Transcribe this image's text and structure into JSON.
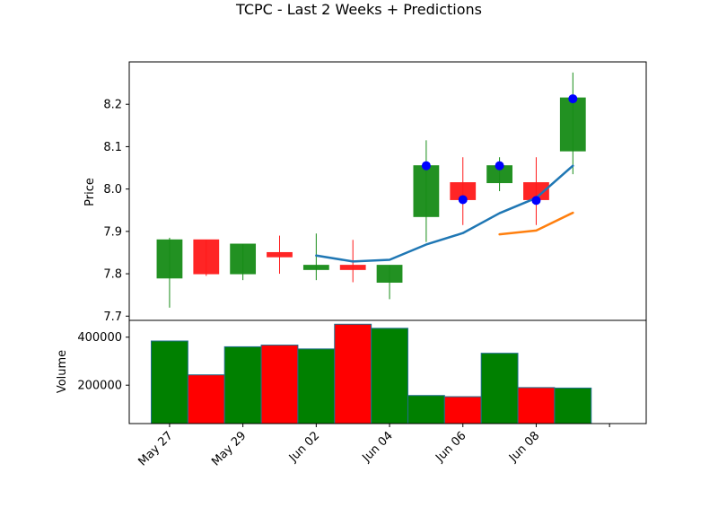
{
  "chart_data": {
    "title": "TCPC - Last 2 Weeks + Predictions",
    "type": "candlestick",
    "price_panel": {
      "ylabel": "Price",
      "ylim": [
        7.69,
        8.3
      ],
      "yticks": [
        7.7,
        7.8,
        7.9,
        8.0,
        8.1,
        8.2
      ],
      "ytick_labels": [
        "7.7",
        "7.8",
        "7.9",
        "8.0",
        "8.1",
        "8.2"
      ],
      "candles": [
        {
          "x": 0,
          "open": 7.79,
          "close": 7.88,
          "high": 7.885,
          "low": 7.72,
          "color": "#178c17"
        },
        {
          "x": 1,
          "open": 7.88,
          "close": 7.8,
          "high": 7.88,
          "low": 7.795,
          "color": "#ff1a1a"
        },
        {
          "x": 2,
          "open": 7.8,
          "close": 7.87,
          "high": 7.87,
          "low": 7.785,
          "color": "#178c17"
        },
        {
          "x": 3,
          "open": 7.85,
          "close": 7.84,
          "high": 7.89,
          "low": 7.8,
          "color": "#ff1a1a"
        },
        {
          "x": 4,
          "open": 7.81,
          "close": 7.82,
          "high": 7.895,
          "low": 7.785,
          "color": "#178c17"
        },
        {
          "x": 5,
          "open": 7.82,
          "close": 7.81,
          "high": 7.88,
          "low": 7.78,
          "color": "#ff1a1a"
        },
        {
          "x": 6,
          "open": 7.78,
          "close": 7.82,
          "high": 7.82,
          "low": 7.74,
          "color": "#178c17"
        },
        {
          "x": 7,
          "open": 7.935,
          "close": 8.055,
          "high": 8.115,
          "low": 7.875,
          "color": "#178c17"
        },
        {
          "x": 8,
          "open": 8.015,
          "close": 7.975,
          "high": 8.075,
          "low": 7.915,
          "color": "#ff1a1a"
        },
        {
          "x": 9,
          "open": 8.015,
          "close": 8.055,
          "high": 8.075,
          "low": 7.995,
          "color": "#178c17"
        },
        {
          "x": 10,
          "open": 8.015,
          "close": 7.975,
          "high": 8.075,
          "low": 7.915,
          "color": "#ff1a1a"
        },
        {
          "x": 11,
          "open": 8.09,
          "close": 8.215,
          "high": 8.275,
          "low": 8.035,
          "color": "#178c17"
        }
      ],
      "dots": {
        "x": [
          7,
          8,
          9,
          10,
          11
        ],
        "y": [
          8.055,
          7.975,
          8.055,
          7.973,
          8.213
        ],
        "color": "#0000ff"
      },
      "lines": [
        {
          "x": [
            4,
            5,
            6,
            7,
            8,
            9,
            10,
            11
          ],
          "y": [
            7.843,
            7.829,
            7.833,
            7.869,
            7.896,
            7.943,
            7.979,
            8.055
          ],
          "color": "#1f77b4"
        },
        {
          "x": [
            9,
            10,
            11
          ],
          "y": [
            7.893,
            7.902,
            7.944
          ],
          "color": "#ff7f0e"
        }
      ]
    },
    "volume_panel": {
      "ylabel": "Volume",
      "ylim": [
        40000,
        470000
      ],
      "yticks": [
        200000,
        400000
      ],
      "ytick_labels": [
        "200000",
        "400000"
      ],
      "bars": [
        {
          "x": 0,
          "value": 384000,
          "color": "#008000"
        },
        {
          "x": 1,
          "value": 243000,
          "color": "#ff0000"
        },
        {
          "x": 2,
          "value": 360000,
          "color": "#008000"
        },
        {
          "x": 3,
          "value": 367000,
          "color": "#ff0000"
        },
        {
          "x": 4,
          "value": 351000,
          "color": "#008000"
        },
        {
          "x": 5,
          "value": 454000,
          "color": "#ff0000"
        },
        {
          "x": 6,
          "value": 437000,
          "color": "#008000"
        },
        {
          "x": 7,
          "value": 157000,
          "color": "#008000"
        },
        {
          "x": 8,
          "value": 152000,
          "color": "#ff0000"
        },
        {
          "x": 9,
          "value": 333000,
          "color": "#008000"
        },
        {
          "x": 10,
          "value": 190000,
          "color": "#ff0000"
        },
        {
          "x": 11,
          "value": 188000,
          "color": "#008000"
        }
      ]
    },
    "xaxis": {
      "xlim": [
        -1.1,
        13
      ],
      "ticks": [
        0,
        2,
        4,
        6,
        8,
        10,
        12
      ],
      "tick_labels": [
        "May 27",
        "May 29",
        "Jun 02",
        "Jun 04",
        "Jun 06",
        "Jun 08",
        ""
      ]
    }
  }
}
